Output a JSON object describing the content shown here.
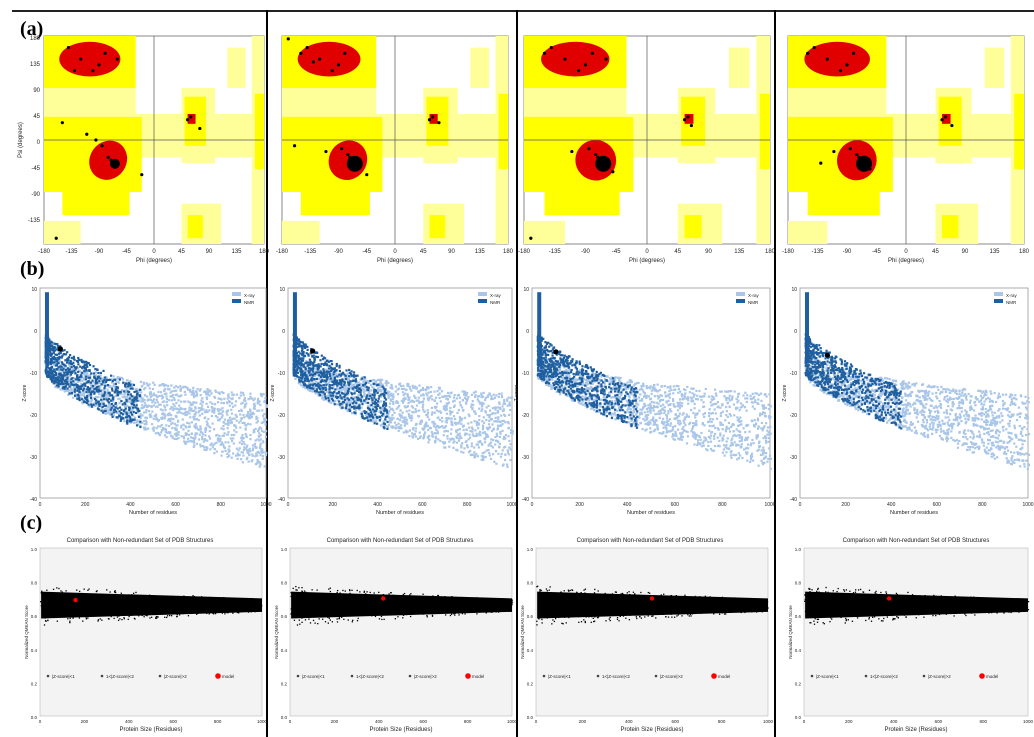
{
  "figure": {
    "row_labels": [
      "(a)",
      "(b)",
      "(c)"
    ]
  },
  "colors": {
    "core": "#e00000",
    "allowed": "#ffff00",
    "generous": "#ffff99",
    "disallowed": "#ffffff",
    "xray": "#a9c6e8",
    "nmr": "#1f5f9f",
    "scatter": "#000000",
    "model_marker": "#ff0000"
  },
  "ramachandran": {
    "xlabel": "Phi (degrees)",
    "ylabel": "Psi (degrees)",
    "xticks": [
      "-180",
      "-135",
      "-90",
      "-45",
      "0",
      "45",
      "90",
      "135",
      "180"
    ],
    "yticks": [
      "180",
      "135",
      "90",
      "45",
      "0",
      "-45",
      "-90",
      "-135",
      "-180"
    ]
  },
  "zscore": {
    "xlabel": "Number of residues",
    "ylabel": "Z-score",
    "legend": [
      "X-ray",
      "NMR"
    ],
    "xticks": [
      "0",
      "200",
      "400",
      "600",
      "800",
      "1000"
    ],
    "yticks": [
      "10",
      "0",
      "-10",
      "-20",
      "-30",
      "-40"
    ]
  },
  "compare": {
    "title": "Comparison with Non-redundant Set of PDB Structures",
    "xlabel": "Protein Size (Residues)",
    "ylabel": "Normalized QMEAN Score",
    "legend": [
      "|Z-score|<1",
      "1<|Z-score|<2",
      "|Z-score|>2",
      "model"
    ],
    "xticks": [
      "0",
      "200",
      "400",
      "600",
      "800",
      "1000"
    ],
    "yticks": [
      "1.0",
      "0.8",
      "0.6",
      "0.4",
      "0.2",
      "0.0"
    ]
  },
  "chart_data": [
    {
      "type": "scatter",
      "panel": "a1",
      "title": "",
      "xlabel": "Phi (degrees)",
      "ylabel": "Psi (degrees)",
      "xlim": [
        -180,
        180
      ],
      "ylim": [
        -180,
        180
      ],
      "points": [
        [
          -65,
          -40
        ],
        [
          -70,
          -35
        ],
        [
          -60,
          -45
        ],
        [
          -75,
          -30
        ],
        [
          -90,
          130
        ],
        [
          -120,
          140
        ],
        [
          -80,
          150
        ],
        [
          -140,
          160
        ],
        [
          -100,
          120
        ],
        [
          -150,
          30
        ],
        [
          60,
          40
        ],
        [
          55,
          35
        ],
        [
          -60,
          140
        ],
        [
          -110,
          10
        ],
        [
          -85,
          -10
        ],
        [
          -95,
          0
        ],
        [
          -130,
          120
        ],
        [
          75,
          20
        ],
        [
          -160,
          -170
        ],
        [
          -20,
          -60
        ]
      ]
    },
    {
      "type": "scatter",
      "panel": "a2",
      "title": "",
      "xlabel": "Phi (degrees)",
      "ylabel": "Psi (degrees)",
      "xlim": [
        -180,
        180
      ],
      "ylim": [
        -180,
        180
      ],
      "points": [
        [
          -65,
          -40
        ],
        [
          -62,
          -42
        ],
        [
          -68,
          -38
        ],
        [
          -70,
          -35
        ],
        [
          -60,
          -45
        ],
        [
          -66,
          -44
        ],
        [
          -72,
          -30
        ],
        [
          -58,
          -48
        ],
        [
          -90,
          130
        ],
        [
          -120,
          140
        ],
        [
          -80,
          150
        ],
        [
          -140,
          160
        ],
        [
          -100,
          120
        ],
        [
          -130,
          135
        ],
        [
          60,
          40
        ],
        [
          55,
          35
        ],
        [
          -75,
          -25
        ],
        [
          -85,
          -15
        ],
        [
          -150,
          150
        ],
        [
          -110,
          -20
        ],
        [
          -45,
          -60
        ],
        [
          -160,
          -10
        ],
        [
          70,
          30
        ],
        [
          -170,
          175
        ]
      ]
    },
    {
      "type": "scatter",
      "panel": "a3",
      "title": "",
      "xlabel": "Phi (degrees)",
      "ylabel": "Psi (degrees)",
      "xlim": [
        -180,
        180
      ],
      "ylim": [
        -180,
        180
      ],
      "points": [
        [
          -65,
          -40
        ],
        [
          -62,
          -42
        ],
        [
          -68,
          -38
        ],
        [
          -70,
          -35
        ],
        [
          -60,
          -45
        ],
        [
          -66,
          -44
        ],
        [
          -72,
          -30
        ],
        [
          -58,
          -48
        ],
        [
          -64,
          -41
        ],
        [
          -90,
          130
        ],
        [
          -120,
          140
        ],
        [
          -80,
          150
        ],
        [
          -140,
          160
        ],
        [
          -100,
          120
        ],
        [
          -60,
          140
        ],
        [
          60,
          40
        ],
        [
          55,
          35
        ],
        [
          -75,
          -25
        ],
        [
          -85,
          -15
        ],
        [
          -150,
          150
        ],
        [
          -110,
          -20
        ],
        [
          -50,
          -55
        ],
        [
          65,
          25
        ],
        [
          -170,
          -170
        ]
      ]
    },
    {
      "type": "scatter",
      "panel": "a4",
      "title": "",
      "xlabel": "Phi (degrees)",
      "ylabel": "Psi (degrees)",
      "xlim": [
        -180,
        180
      ],
      "ylim": [
        -180,
        180
      ],
      "points": [
        [
          -65,
          -40
        ],
        [
          -62,
          -42
        ],
        [
          -68,
          -38
        ],
        [
          -70,
          -35
        ],
        [
          -60,
          -45
        ],
        [
          -66,
          -44
        ],
        [
          -72,
          -30
        ],
        [
          -58,
          -48
        ],
        [
          -90,
          130
        ],
        [
          -120,
          140
        ],
        [
          -80,
          150
        ],
        [
          -140,
          160
        ],
        [
          -100,
          120
        ],
        [
          60,
          40
        ],
        [
          55,
          35
        ],
        [
          -75,
          -25
        ],
        [
          -85,
          -15
        ],
        [
          -150,
          150
        ],
        [
          -110,
          -20
        ],
        [
          -55,
          -50
        ],
        [
          70,
          25
        ],
        [
          -130,
          -40
        ]
      ]
    },
    {
      "type": "scatter",
      "panel": "b1",
      "title": "",
      "xlabel": "Number of residues",
      "ylabel": "Z-score",
      "xlim": [
        0,
        1000
      ],
      "ylim": [
        -40,
        10
      ],
      "series": [
        {
          "name": "X-ray"
        },
        {
          "name": "NMR"
        }
      ],
      "model_point": [
        90,
        -4.5
      ]
    },
    {
      "type": "scatter",
      "panel": "b2",
      "title": "",
      "xlabel": "Number of residues",
      "ylabel": "Z-score",
      "xlim": [
        0,
        1000
      ],
      "ylim": [
        -40,
        10
      ],
      "series": [
        {
          "name": "X-ray"
        },
        {
          "name": "NMR"
        }
      ],
      "model_point": [
        110,
        -5.0
      ]
    },
    {
      "type": "scatter",
      "panel": "b3",
      "title": "",
      "xlabel": "Number of residues",
      "ylabel": "Z-score",
      "xlim": [
        0,
        1000
      ],
      "ylim": [
        -40,
        10
      ],
      "series": [
        {
          "name": "X-ray"
        },
        {
          "name": "NMR"
        }
      ],
      "model_point": [
        100,
        -5.2
      ]
    },
    {
      "type": "scatter",
      "panel": "b4",
      "title": "",
      "xlabel": "Number of residues",
      "ylabel": "Z-score",
      "xlim": [
        0,
        1000
      ],
      "ylim": [
        -40,
        10
      ],
      "series": [
        {
          "name": "X-ray"
        },
        {
          "name": "NMR"
        }
      ],
      "model_point": [
        120,
        -6.0
      ]
    },
    {
      "type": "scatter",
      "panel": "c1",
      "title": "Comparison with Non-redundant Set of PDB Structures",
      "xlabel": "Protein Size (Residues)",
      "ylabel": "Normalized QMEAN Score",
      "xlim": [
        0,
        1000
      ],
      "ylim": [
        0,
        1
      ],
      "model_point": [
        160,
        0.69
      ]
    },
    {
      "type": "scatter",
      "panel": "c2",
      "title": "Comparison with Non-redundant Set of PDB Structures",
      "xlabel": "Protein Size (Residues)",
      "ylabel": "Normalized QMEAN Score",
      "xlim": [
        0,
        1000
      ],
      "ylim": [
        0,
        1
      ],
      "model_point": [
        420,
        0.7
      ]
    },
    {
      "type": "scatter",
      "panel": "c3",
      "title": "Comparison with Non-redundant Set of PDB Structures",
      "xlabel": "Protein Size (Residues)",
      "ylabel": "Normalized QMEAN Score",
      "xlim": [
        0,
        1000
      ],
      "ylim": [
        0,
        1
      ],
      "model_point": [
        500,
        0.7
      ]
    },
    {
      "type": "scatter",
      "panel": "c4",
      "title": "Comparison with Non-redundant Set of PDB Structures",
      "xlabel": "Protein Size (Residues)",
      "ylabel": "Normalized QMEAN Score",
      "xlim": [
        0,
        1000
      ],
      "ylim": [
        0,
        1
      ],
      "model_point": [
        380,
        0.7
      ]
    }
  ]
}
